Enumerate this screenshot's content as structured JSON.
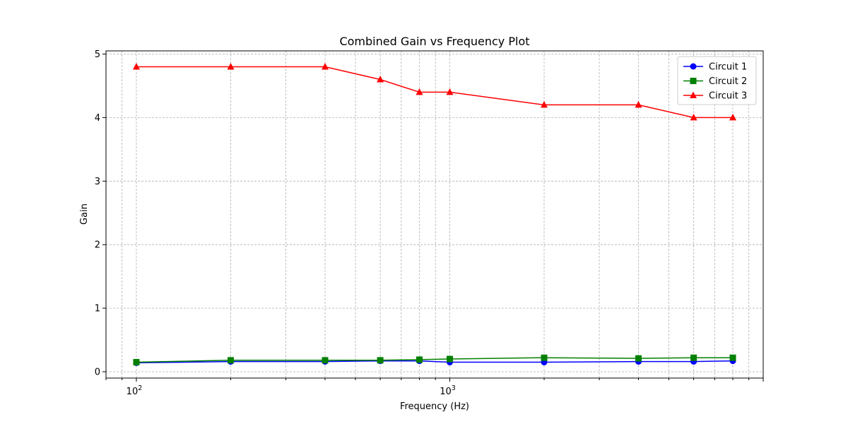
{
  "chart_data": {
    "type": "line",
    "title": "Combined Gain vs Frequency Plot",
    "xlabel": "Frequency (Hz)",
    "ylabel": "Gain",
    "xscale": "log",
    "x": [
      100,
      200,
      400,
      600,
      800,
      1000,
      2000,
      4000,
      6000,
      8000
    ],
    "xlim": [
      80,
      10000
    ],
    "ylim": [
      -0.1,
      5.05
    ],
    "x_major_ticks": [
      100,
      1000
    ],
    "x_tick_base": "10",
    "x_tick_exponents": [
      "2",
      "3"
    ],
    "y_ticks": [
      0,
      1,
      2,
      3,
      4,
      5
    ],
    "y_tick_labels": [
      "0",
      "1",
      "2",
      "3",
      "4",
      "5"
    ],
    "grid": true,
    "legend_position": "top-right",
    "series": [
      {
        "name": "Circuit 1",
        "color": "#0000ff",
        "marker": "circle",
        "values": [
          0.14,
          0.16,
          0.16,
          0.17,
          0.17,
          0.15,
          0.15,
          0.16,
          0.16,
          0.17
        ]
      },
      {
        "name": "Circuit 2",
        "color": "#008000",
        "marker": "square",
        "values": [
          0.15,
          0.18,
          0.18,
          0.18,
          0.19,
          0.2,
          0.22,
          0.21,
          0.22,
          0.22
        ]
      },
      {
        "name": "Circuit 3",
        "color": "#ff0000",
        "marker": "triangle",
        "values": [
          4.8,
          4.8,
          4.8,
          4.6,
          4.4,
          4.4,
          4.2,
          4.2,
          4.0,
          4.0
        ]
      }
    ]
  }
}
